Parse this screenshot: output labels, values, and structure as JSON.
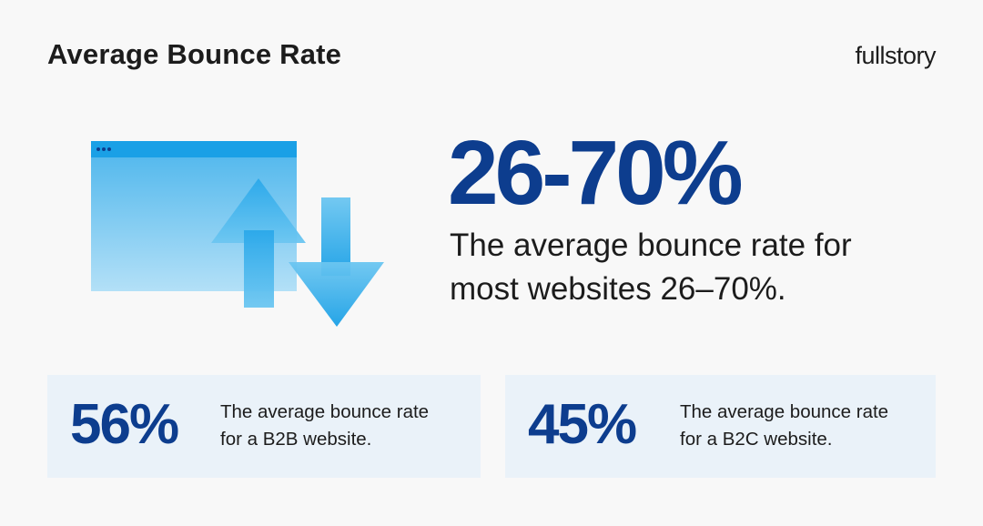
{
  "header": {
    "title": "Average Bounce Rate",
    "logo_text": "fullstory"
  },
  "hero": {
    "stat": "26-70%",
    "description": "The average bounce rate for most websites 26–70%."
  },
  "cards": [
    {
      "stat": "56%",
      "line1": "The average bounce rate",
      "line2": "for a B2B website."
    },
    {
      "stat": "45%",
      "line1": "The average bounce rate",
      "line2": "for a B2C website."
    }
  ],
  "illustration": {
    "icons": [
      "browser-window-icon",
      "arrow-up-icon",
      "arrow-down-icon"
    ]
  },
  "colors": {
    "background": "#f8f8f8",
    "accent_dark_blue": "#0d3d8e",
    "card_background": "#eaf2f9",
    "illustration_blue": "#1aa0e6"
  }
}
